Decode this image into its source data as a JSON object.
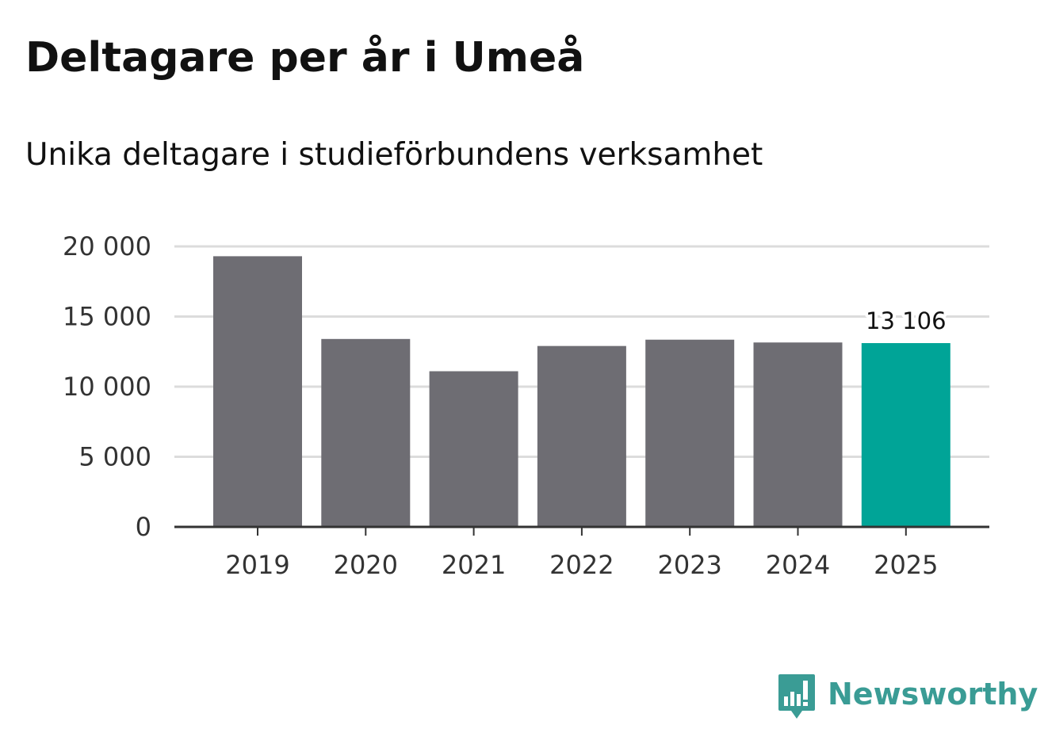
{
  "chart_data": {
    "type": "bar",
    "title": "Deltagare per år i Umeå",
    "subtitle": "Unika deltagare i studieförbundens verksamhet",
    "categories": [
      "2019",
      "2020",
      "2021",
      "2022",
      "2023",
      "2024",
      "2025"
    ],
    "values": [
      19300,
      13400,
      11100,
      12900,
      13350,
      13150,
      13106
    ],
    "highlight_index": 6,
    "data_labels": [
      {
        "index": 6,
        "text": "13 106"
      }
    ],
    "xlabel": "",
    "ylabel": "",
    "ylim": [
      0,
      20000
    ],
    "yticks": [
      0,
      5000,
      10000,
      15000,
      20000
    ],
    "ytick_labels": [
      "0",
      "5 000",
      "10 000",
      "15 000",
      "20 000"
    ],
    "grid": true,
    "legend": "none"
  },
  "colors": {
    "bar": "#6e6d73",
    "highlight": "#00a497",
    "grid": "#dcdcdc",
    "axis": "#333333",
    "brand": "#3a9c95"
  },
  "brand": {
    "name": "Newsworthy",
    "icon": "newsworthy-logo-icon"
  }
}
